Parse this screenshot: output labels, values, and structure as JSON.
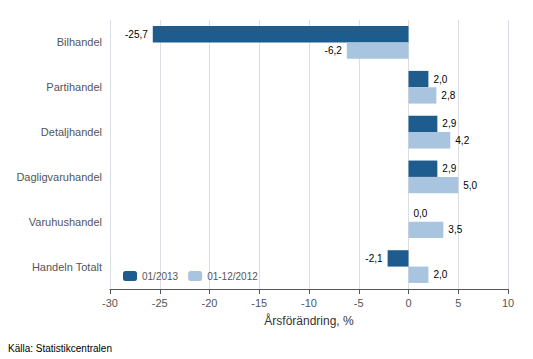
{
  "chart_data": {
    "type": "bar",
    "orientation": "horizontal",
    "categories": [
      "Handeln Totalt",
      "Varuhushandel",
      "Dagligvaruhandel",
      "Detaljhandel",
      "Partihandel",
      "Bilhandel"
    ],
    "series": [
      {
        "name": "01/2013",
        "color": "#1e5c8e",
        "values": [
          -2.1,
          0.0,
          2.9,
          2.9,
          2.0,
          -25.7
        ],
        "value_labels": [
          "-2,1",
          "0,0",
          "2,9",
          "2,9",
          "2,0",
          "-25,7"
        ]
      },
      {
        "name": "01-12/2012",
        "color": "#a8c4de",
        "values": [
          2.0,
          3.5,
          5.0,
          4.2,
          2.8,
          -6.2
        ],
        "value_labels": [
          "2,0",
          "3,5",
          "5,0",
          "4,2",
          "2,8",
          "-6,2"
        ]
      }
    ],
    "xlabel": "Årsförändring, %",
    "xlim": [
      -30,
      10
    ],
    "xticks": [
      -30,
      -25,
      -20,
      -15,
      -10,
      -5,
      0,
      5,
      10
    ],
    "grid": true,
    "legend": "lower left",
    "data_labels": true,
    "annotations": [
      "Källa: Statistikcentralen"
    ]
  }
}
